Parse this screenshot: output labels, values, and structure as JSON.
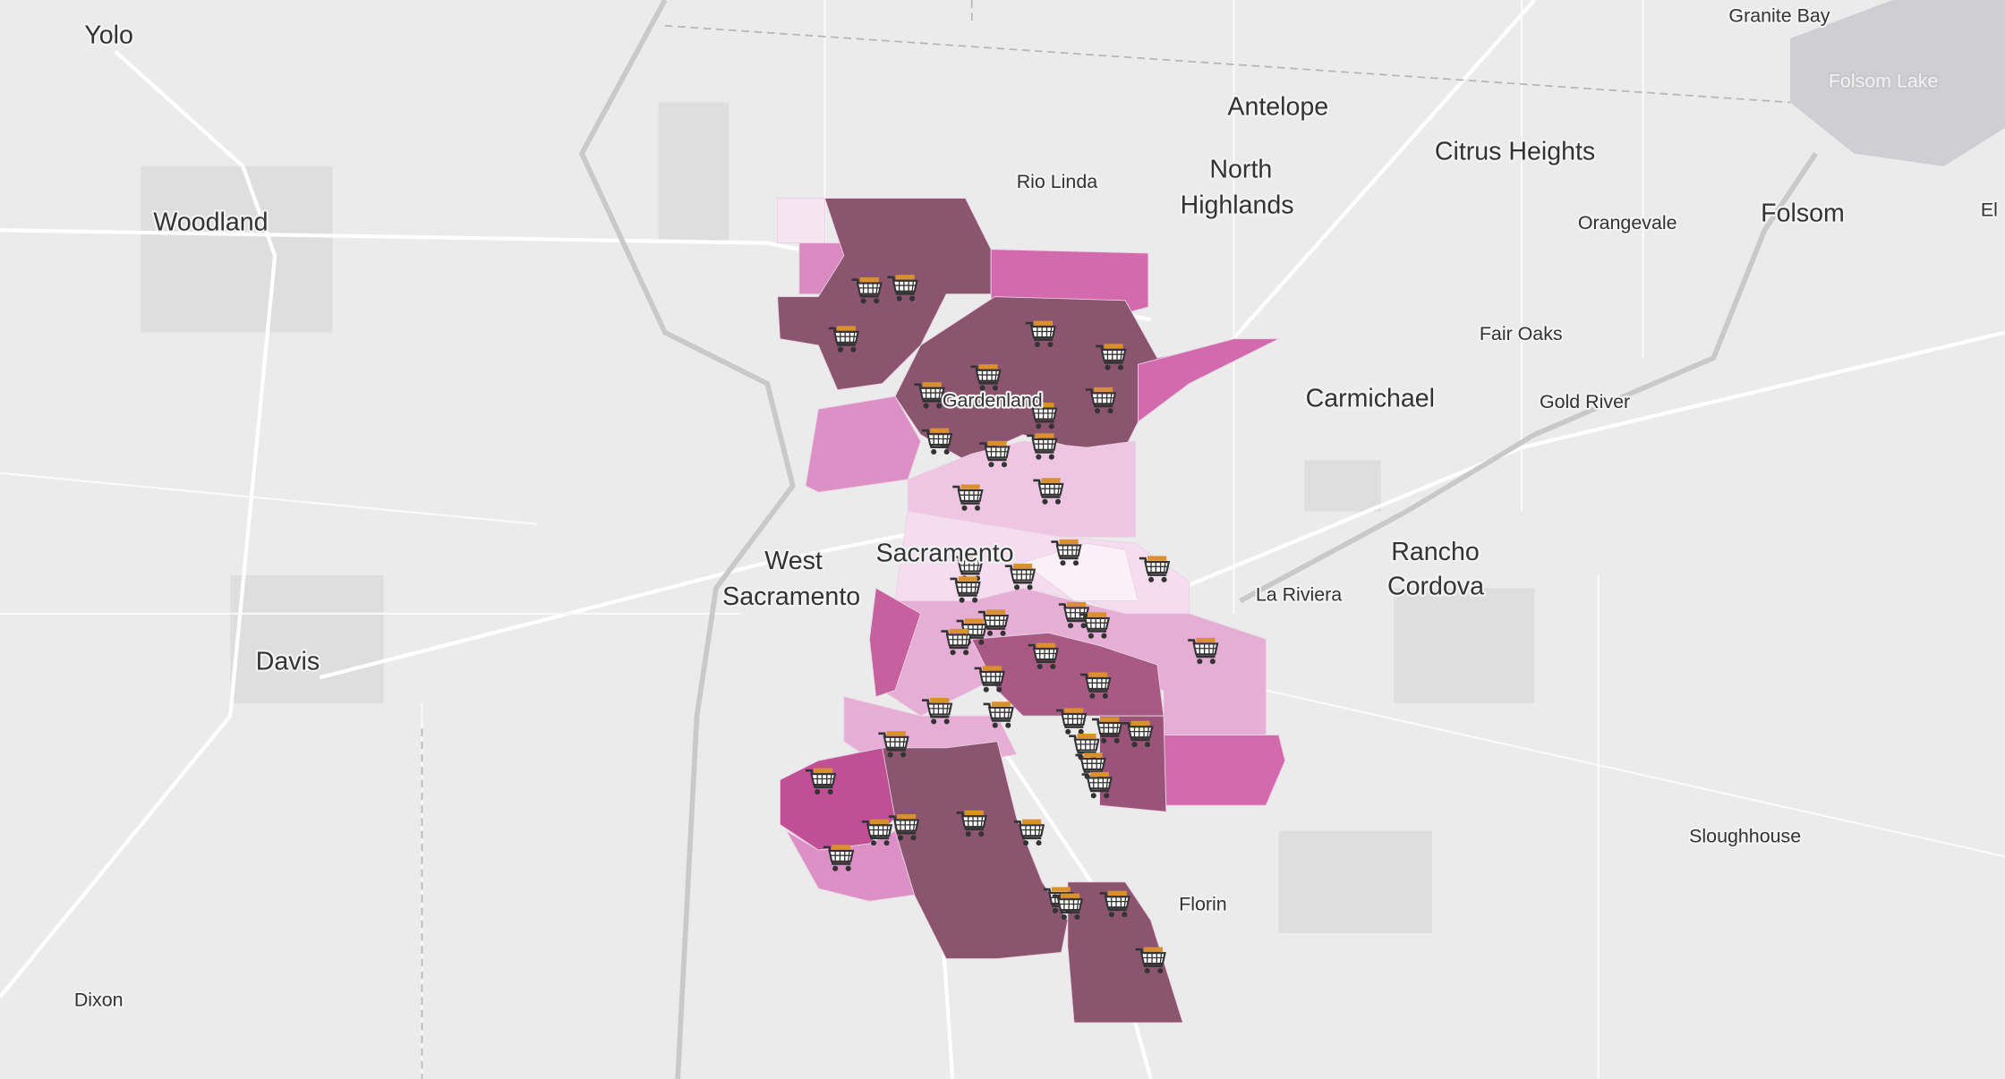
{
  "places": [
    "Yolo",
    "Woodland",
    "Davis",
    "Dixon",
    "Antelope",
    "Rio Linda",
    "North",
    "Highlands",
    "Citrus Heights",
    "Granite Bay",
    "Folsom Lake",
    "Orangevale",
    "Folsom",
    "El",
    "Fair Oaks",
    "Carmichael",
    "Gold River",
    "Gardenland",
    "West",
    "Sacramento",
    "Sacramento",
    "La Riviera",
    "Rancho",
    "Cordova",
    "Sloughhouse",
    "Florin"
  ]
}
